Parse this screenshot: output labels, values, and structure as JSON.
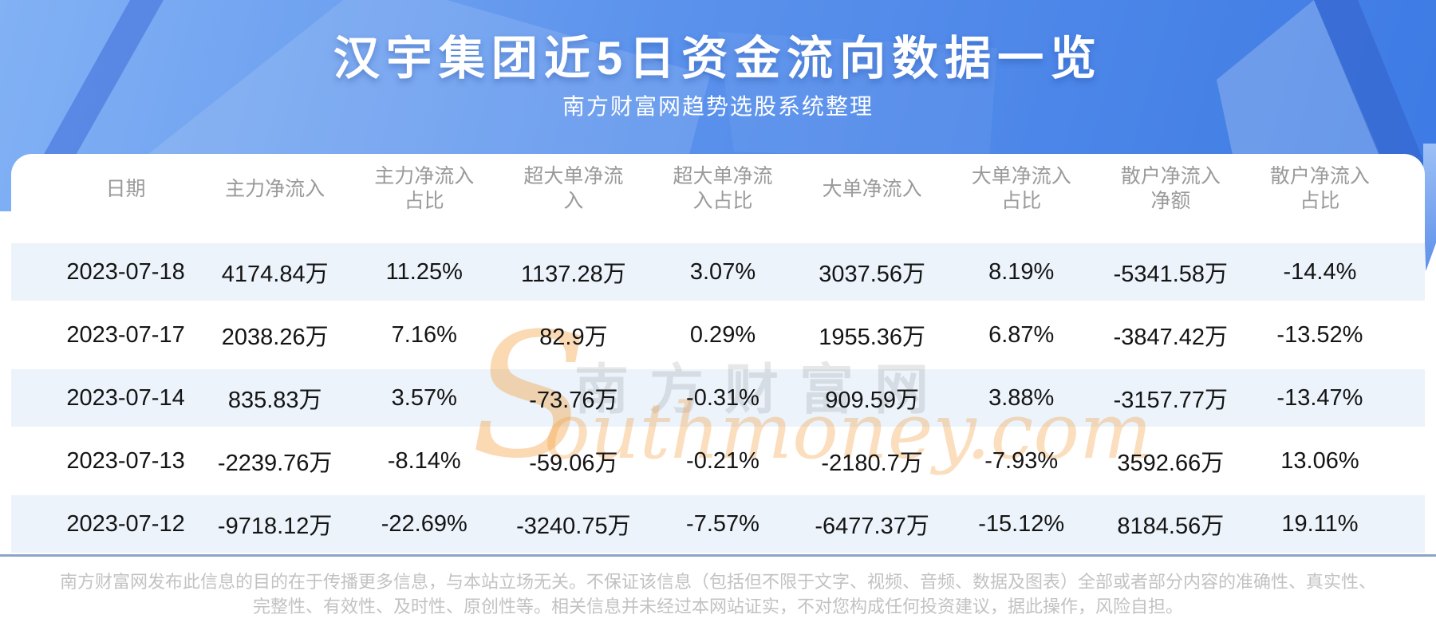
{
  "page": {
    "title": "汉宇集团近5日资金流向数据一览",
    "subtitle": "南方财富网趋势选股系统整理"
  },
  "table": {
    "headers": [
      "日期",
      "主力净流入",
      "主力净流入\n占比",
      "超大单净流\n入",
      "超大单净流\n入占比",
      "大单净流入",
      "大单净流入\n占比",
      "散户净流入\n净额",
      "散户净流入\n占比"
    ],
    "rows": [
      {
        "cells": [
          "2023-07-18",
          "4174.84万",
          "11.25%",
          "1137.28万",
          "3.07%",
          "3037.56万",
          "8.19%",
          "-5341.58万",
          "-14.4%"
        ]
      },
      {
        "cells": [
          "2023-07-17",
          "2038.26万",
          "7.16%",
          "82.9万",
          "0.29%",
          "1955.36万",
          "6.87%",
          "-3847.42万",
          "-13.52%"
        ]
      },
      {
        "cells": [
          "2023-07-14",
          "835.83万",
          "3.57%",
          "-73.76万",
          "-0.31%",
          "909.59万",
          "3.88%",
          "-3157.77万",
          "-13.47%"
        ]
      },
      {
        "cells": [
          "2023-07-13",
          "-2239.76万",
          "-8.14%",
          "-59.06万",
          "-0.21%",
          "-2180.7万",
          "-7.93%",
          "3592.66万",
          "13.06%"
        ]
      },
      {
        "cells": [
          "2023-07-12",
          "-9718.12万",
          "-22.69%",
          "-3240.75万",
          "-7.57%",
          "-6477.37万",
          "-15.12%",
          "8184.56万",
          "19.11%"
        ]
      }
    ]
  },
  "chart_data": {
    "type": "table",
    "title": "汉宇集团近5日资金流向数据一览",
    "subtitle": "南方财富网趋势选股系统整理",
    "columns": [
      "日期",
      "主力净流入",
      "主力净流入占比",
      "超大单净流入",
      "超大单净流入占比",
      "大单净流入",
      "大单净流入占比",
      "散户净流入净额",
      "散户净流入占比"
    ],
    "rows": [
      [
        "2023-07-18",
        "4174.84万",
        "11.25%",
        "1137.28万",
        "3.07%",
        "3037.56万",
        "8.19%",
        "-5341.58万",
        "-14.4%"
      ],
      [
        "2023-07-17",
        "2038.26万",
        "7.16%",
        "82.9万",
        "0.29%",
        "1955.36万",
        "6.87%",
        "-3847.42万",
        "-13.52%"
      ],
      [
        "2023-07-14",
        "835.83万",
        "3.57%",
        "-73.76万",
        "-0.31%",
        "909.59万",
        "3.88%",
        "-3157.77万",
        "-13.47%"
      ],
      [
        "2023-07-13",
        "-2239.76万",
        "-8.14%",
        "-59.06万",
        "-0.21%",
        "-2180.7万",
        "-7.93%",
        "3592.66万",
        "13.06%"
      ],
      [
        "2023-07-12",
        "-9718.12万",
        "-22.69%",
        "-3240.75万",
        "-7.57%",
        "-6477.37万",
        "-15.12%",
        "8184.56万",
        "19.11%"
      ]
    ]
  },
  "watermark": {
    "cn": "南方财富网",
    "en_initial": "S",
    "en_rest": "outhmoney.com"
  },
  "footer": {
    "line1": "南方财富网发布此信息的目的在于传播更多信息，与本站立场无关。不保证该信息（包括但不限于文字、视频、音频、数据及图表）全部或者部分内容的准确性、真实性、",
    "line2": "完整性、有效性、及时性、原创性等。相关信息并未经过本网站证实，不对您构成任何投资建议，据此操作，风险自担。"
  },
  "colors": {
    "hero_gradient_start": "#82b1f4",
    "hero_gradient_end": "#3d7ae4",
    "row_alt_bg": "#ecf3fb",
    "divider": "#8ca5c6",
    "header_text": "#9a9a9a",
    "cell_text": "#141414",
    "footer_text": "#c2c2c2",
    "watermark_orange": "#f3a042"
  }
}
